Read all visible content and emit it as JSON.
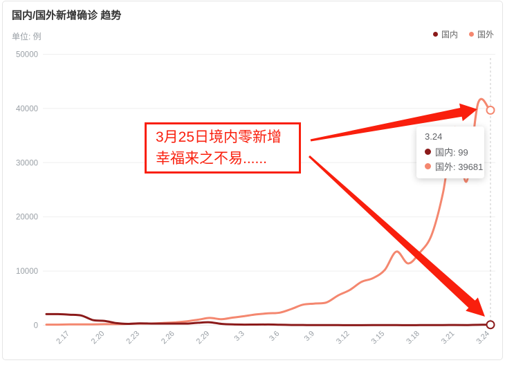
{
  "card": {
    "title": "国内/国外新增确诊 趋势",
    "unit_label": "单位: 例"
  },
  "tooltip": {
    "date": "3.24",
    "rows": [
      {
        "series": "国内",
        "value": "99",
        "text": "国内: 99"
      },
      {
        "series": "国外",
        "value": "39681",
        "text": "国外: 39681"
      }
    ]
  },
  "annotation": {
    "line1": "3月25日境内零新增",
    "line2": "幸福来之不易......",
    "accent_color": "#f91f0d"
  },
  "chart_data": {
    "type": "line",
    "smooth": true,
    "title": "国内/国外新增确诊 趋势",
    "ylabel": "例",
    "ylim": [
      0,
      50000
    ],
    "grid": true,
    "legend_position": "top-right",
    "y_ticks": [
      "0",
      "10000",
      "20000",
      "30000",
      "40000",
      "50000"
    ],
    "categories": [
      "2.15",
      "2.16",
      "2.17",
      "2.18",
      "2.19",
      "2.20",
      "2.21",
      "2.22",
      "2.23",
      "2.24",
      "2.25",
      "2.26",
      "2.27",
      "2.28",
      "2.29",
      "3.1",
      "3.2",
      "3.3",
      "3.4",
      "3.5",
      "3.6",
      "3.7",
      "3.8",
      "3.9",
      "3.10",
      "3.11",
      "3.12",
      "3.13",
      "3.14",
      "3.15",
      "3.16",
      "3.17",
      "3.18",
      "3.19",
      "3.20",
      "3.21",
      "3.22",
      "3.23",
      "3.24"
    ],
    "x_ticks_shown": [
      "2.17",
      "2.20",
      "2.23",
      "2.26",
      "2.29",
      "3.3",
      "3.6",
      "3.9",
      "3.12",
      "3.15",
      "3.18",
      "3.21",
      "3.24"
    ],
    "highlight_x": "3.24",
    "series": [
      {
        "name": "国内",
        "color": "#8B1A1A",
        "values": [
          2050,
          2050,
          1950,
          1800,
          950,
          800,
          400,
          260,
          360,
          310,
          300,
          310,
          300,
          460,
          550,
          250,
          150,
          120,
          130,
          140,
          100,
          50,
          45,
          25,
          25,
          20,
          10,
          15,
          20,
          20,
          20,
          15,
          35,
          40,
          40,
          45,
          40,
          80,
          99
        ]
      },
      {
        "name": "国外",
        "color": "#F4876F",
        "values": [
          120,
          120,
          150,
          150,
          160,
          200,
          210,
          250,
          300,
          320,
          420,
          520,
          720,
          1020,
          1350,
          1120,
          1420,
          1700,
          2000,
          2200,
          2320,
          3000,
          3800,
          4000,
          4200,
          5500,
          6500,
          8000,
          8700,
          10200,
          13600,
          11400,
          13400,
          16600,
          24500,
          36500,
          26500,
          41000,
          39681
        ]
      }
    ]
  }
}
